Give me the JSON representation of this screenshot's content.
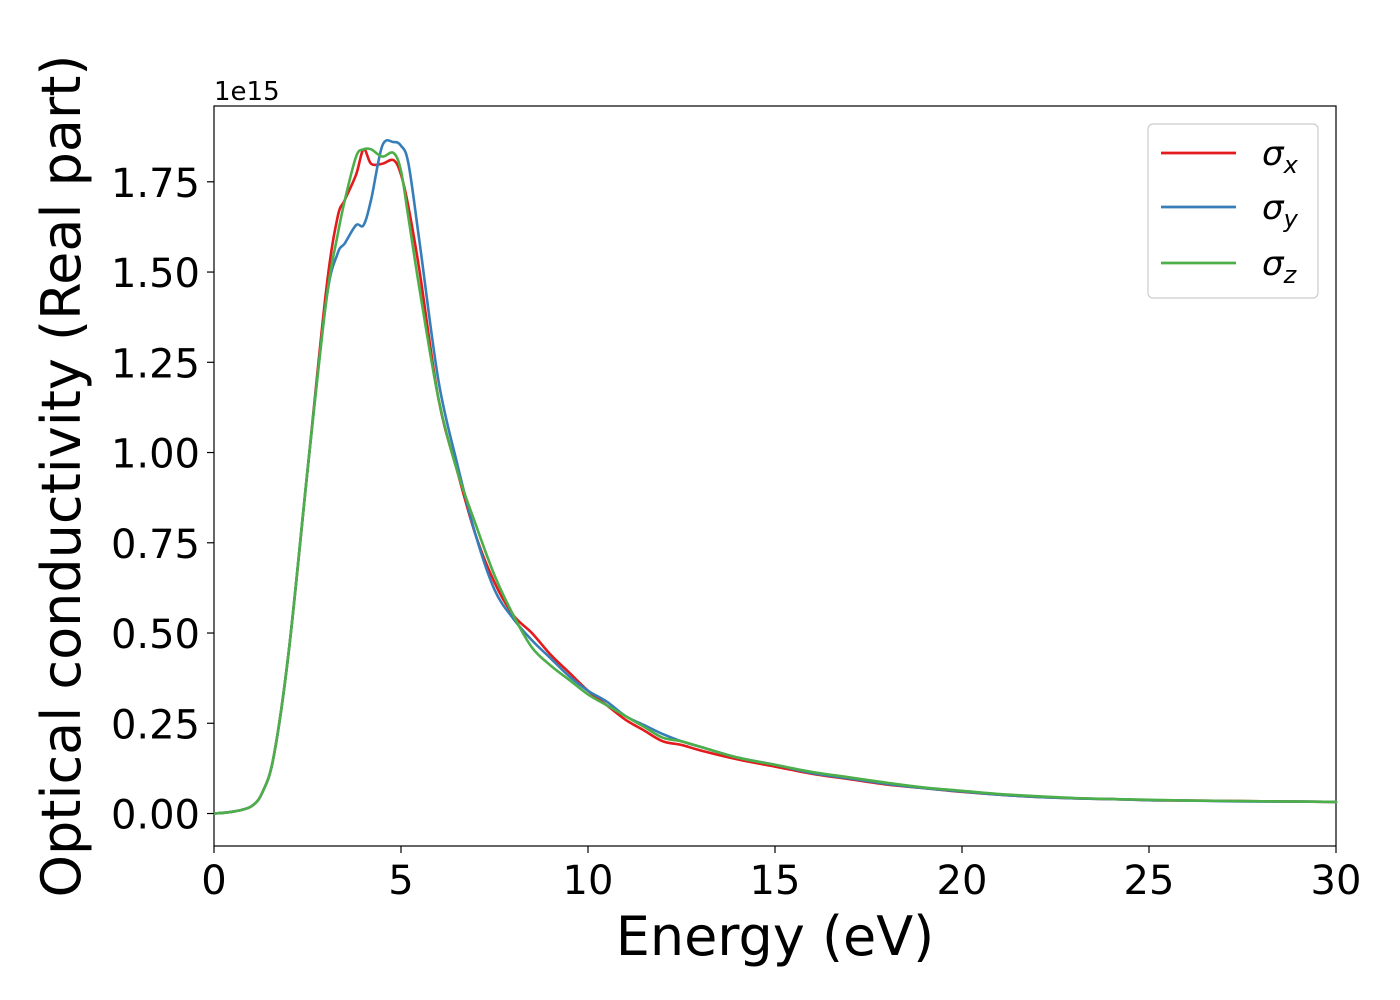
{
  "chart_data": {
    "type": "line",
    "xlabel": "Energy (eV)",
    "ylabel": "Optical conductivity (Real part)",
    "y_offset_text": "1e15",
    "y_multiplier": 1000000000000000.0,
    "xlim": [
      0,
      30
    ],
    "ylim": [
      -0.09,
      1.96
    ],
    "grid": false,
    "legend_position": "upper right",
    "x_ticks": [
      0,
      5,
      10,
      15,
      20,
      25,
      30
    ],
    "x_tick_labels": [
      "0",
      "5",
      "10",
      "15",
      "20",
      "25",
      "30"
    ],
    "y_ticks": [
      0.0,
      0.25,
      0.5,
      0.75,
      1.0,
      1.25,
      1.5,
      1.75
    ],
    "y_tick_labels": [
      "0.00",
      "0.25",
      "0.50",
      "0.75",
      "1.00",
      "1.25",
      "1.50",
      "1.75"
    ],
    "series": [
      {
        "name": "σ_x",
        "legend_base": "σ",
        "legend_sub": "x",
        "color": "#e41a1c",
        "x": [
          0,
          0.5,
          1.0,
          1.3,
          1.6,
          2.0,
          2.5,
          3.0,
          3.3,
          3.5,
          3.8,
          4.0,
          4.2,
          4.5,
          4.8,
          5.0,
          5.2,
          5.5,
          6.0,
          6.5,
          7.0,
          7.5,
          8.0,
          8.5,
          9.0,
          9.5,
          10,
          10.5,
          11,
          11.5,
          12,
          12.5,
          13,
          14,
          15,
          16,
          17,
          18,
          19,
          20,
          21,
          22,
          23,
          24,
          25,
          26,
          27,
          28,
          29,
          30
        ],
        "y": [
          0.0,
          0.005,
          0.02,
          0.06,
          0.16,
          0.45,
          0.95,
          1.45,
          1.65,
          1.7,
          1.77,
          1.84,
          1.8,
          1.8,
          1.81,
          1.77,
          1.68,
          1.5,
          1.15,
          0.95,
          0.77,
          0.64,
          0.55,
          0.5,
          0.44,
          0.39,
          0.34,
          0.3,
          0.26,
          0.23,
          0.2,
          0.19,
          0.175,
          0.15,
          0.13,
          0.11,
          0.095,
          0.08,
          0.07,
          0.06,
          0.052,
          0.046,
          0.042,
          0.04,
          0.037,
          0.036,
          0.035,
          0.034,
          0.033,
          0.032
        ]
      },
      {
        "name": "σ_y",
        "legend_base": "σ",
        "legend_sub": "y",
        "color": "#377eb8",
        "x": [
          0,
          0.5,
          1.0,
          1.3,
          1.6,
          2.0,
          2.5,
          3.0,
          3.3,
          3.5,
          3.8,
          4.0,
          4.2,
          4.5,
          4.8,
          5.0,
          5.2,
          5.5,
          6.0,
          6.5,
          7.0,
          7.5,
          8.0,
          8.5,
          9.0,
          9.5,
          10,
          10.5,
          11,
          11.5,
          12,
          12.5,
          13,
          14,
          15,
          16,
          17,
          18,
          19,
          20,
          21,
          22,
          23,
          24,
          25,
          26,
          27,
          28,
          29,
          30
        ],
        "y": [
          0.0,
          0.005,
          0.02,
          0.06,
          0.16,
          0.45,
          0.95,
          1.42,
          1.55,
          1.58,
          1.63,
          1.63,
          1.7,
          1.85,
          1.86,
          1.85,
          1.8,
          1.58,
          1.2,
          0.97,
          0.77,
          0.62,
          0.54,
          0.48,
          0.43,
          0.38,
          0.34,
          0.31,
          0.27,
          0.245,
          0.22,
          0.2,
          0.185,
          0.155,
          0.135,
          0.112,
          0.097,
          0.082,
          0.07,
          0.061,
          0.052,
          0.046,
          0.042,
          0.04,
          0.037,
          0.036,
          0.034,
          0.033,
          0.033,
          0.032
        ]
      },
      {
        "name": "σ_z",
        "legend_base": "σ",
        "legend_sub": "z",
        "color": "#4daf4a",
        "x": [
          0,
          0.5,
          1.0,
          1.3,
          1.6,
          2.0,
          2.5,
          3.0,
          3.3,
          3.5,
          3.8,
          4.0,
          4.2,
          4.5,
          4.8,
          5.0,
          5.2,
          5.5,
          6.0,
          6.5,
          7.0,
          7.5,
          8.0,
          8.5,
          9.0,
          9.5,
          10,
          10.5,
          11,
          11.5,
          12,
          12.5,
          13,
          14,
          15,
          16,
          17,
          18,
          19,
          20,
          21,
          22,
          23,
          24,
          25,
          26,
          27,
          28,
          29,
          30
        ],
        "y": [
          0.0,
          0.005,
          0.02,
          0.06,
          0.16,
          0.45,
          0.95,
          1.42,
          1.6,
          1.7,
          1.82,
          1.84,
          1.84,
          1.82,
          1.83,
          1.78,
          1.65,
          1.45,
          1.15,
          0.95,
          0.8,
          0.66,
          0.55,
          0.46,
          0.41,
          0.37,
          0.33,
          0.3,
          0.27,
          0.24,
          0.21,
          0.2,
          0.185,
          0.155,
          0.135,
          0.115,
          0.1,
          0.085,
          0.072,
          0.063,
          0.054,
          0.048,
          0.043,
          0.04,
          0.038,
          0.036,
          0.035,
          0.034,
          0.033,
          0.032
        ]
      }
    ]
  }
}
